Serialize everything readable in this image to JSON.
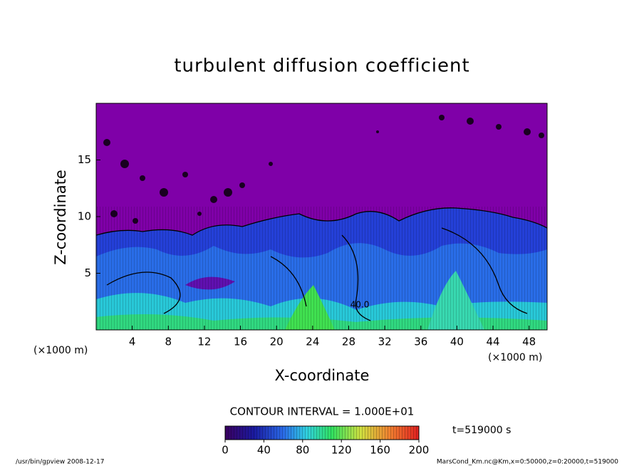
{
  "chart_data": {
    "type": "contour",
    "title": "turbulent diffusion coefficient",
    "x_label": "X-coordinate",
    "y_label": "Z-coordinate",
    "x_unit": "(×1000 m)",
    "y_unit": "(×1000 m)",
    "xlim": [
      0,
      50
    ],
    "xticks": [
      4,
      8,
      12,
      16,
      20,
      24,
      28,
      32,
      36,
      40,
      44,
      48
    ],
    "ylim": [
      0,
      20
    ],
    "yticks": [
      5,
      10,
      15
    ],
    "contour_interval": "CONTOUR INTERVAL = 1.000E+01",
    "contour_labels": [
      {
        "value": 40,
        "label": "40.0"
      }
    ],
    "colorbar_lim": [
      0,
      200
    ],
    "colorbar_ticks": [
      0,
      40,
      80,
      120,
      160,
      200
    ],
    "time_label": "t=519000 s",
    "footer_left": "/usr/bin/gpview  2008-12-17",
    "footer_right": "MarsCond_Km.nc@Km,x=0:50000,z=0:20000,t=519000"
  }
}
